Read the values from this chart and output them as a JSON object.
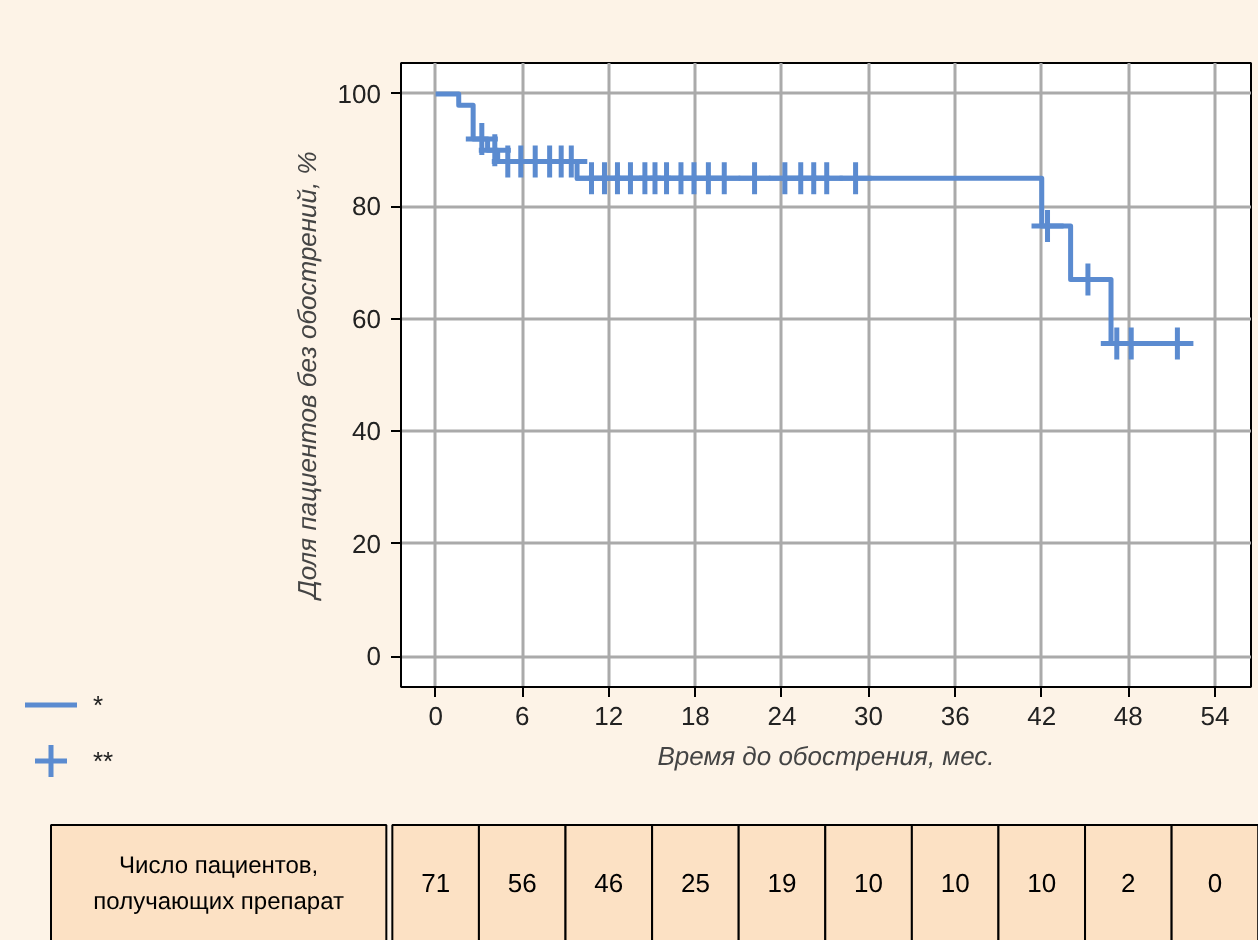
{
  "chart_data": {
    "type": "step",
    "xlabel": "Время до обострения, мес.",
    "ylabel": "Доля пациентов без обострений, %",
    "xlim": [
      -2.4,
      56.5
    ],
    "ylim": [
      -5.5,
      105.5
    ],
    "xticks": [
      0,
      6,
      12,
      18,
      24,
      30,
      36,
      42,
      48,
      54
    ],
    "yticks": [
      0,
      20,
      40,
      60,
      80,
      100
    ],
    "grid": true,
    "legend": "bottom left",
    "series": [
      {
        "name": "*",
        "color": "#5b8bd0",
        "x": [
          0,
          1.6,
          2.6,
          3.6,
          4.3,
          9.8,
          42,
          44,
          46.8,
          51.5
        ],
        "values": [
          100,
          98,
          92,
          90,
          88,
          85,
          76.5,
          67,
          55.6,
          55.6
        ]
      },
      {
        "name": "**",
        "type": "scatter",
        "marker": "cross",
        "color": "#5b8bd0",
        "x": [
          3.2,
          4.1,
          5.0,
          5.9,
          6.9,
          7.9,
          8.7,
          9.4,
          10.8,
          11.7,
          12.6,
          13.5,
          14.5,
          15.2,
          16.0,
          17.0,
          17.9,
          18.9,
          20.0,
          22.1,
          24.2,
          25.3,
          26.2,
          27.1,
          29.1,
          42.4,
          45.2,
          47.2,
          48.2,
          51.4
        ],
        "values": [
          92,
          90,
          88,
          88,
          88,
          88,
          88,
          88,
          85,
          85,
          85,
          85,
          85,
          85,
          85,
          85,
          85,
          85,
          85,
          85,
          85,
          85,
          85,
          85,
          85,
          76.5,
          67,
          55.6,
          55.6,
          55.6
        ]
      }
    ],
    "annotations": [
      "Число пациентов,\nполучающих препарат",
      "71",
      "56",
      "46",
      "25",
      "19",
      "10",
      "10",
      "10",
      "2",
      "0"
    ]
  }
}
